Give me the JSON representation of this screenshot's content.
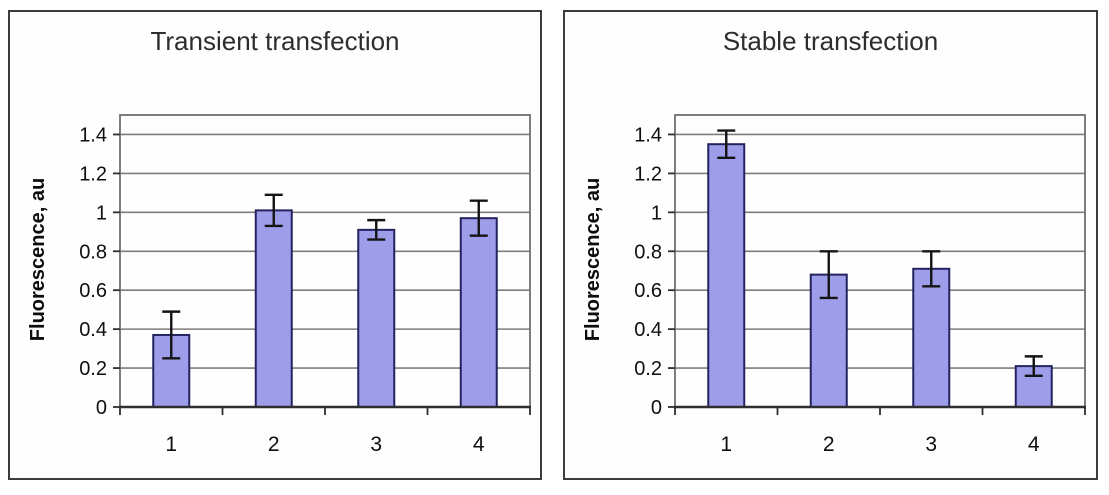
{
  "page": {
    "background": "#ffffff",
    "panel_border_color": "#3c3c3c"
  },
  "chart_data": [
    {
      "type": "bar",
      "title": "Transient transfection",
      "xlabel": "",
      "ylabel": "Fluorescence, au",
      "categories": [
        "1",
        "2",
        "3",
        "4"
      ],
      "values": [
        0.37,
        1.01,
        0.91,
        0.97
      ],
      "errors": [
        0.12,
        0.08,
        0.05,
        0.09
      ],
      "ylim": [
        0,
        1.5
      ],
      "yticks": [
        {
          "value": 0,
          "label": "0"
        },
        {
          "value": 0.2,
          "label": "0.2"
        },
        {
          "value": 0.4,
          "label": "0.4"
        },
        {
          "value": 0.6,
          "label": "0.6"
        },
        {
          "value": 0.8,
          "label": "0.8"
        },
        {
          "value": 1,
          "label": "1"
        },
        {
          "value": 1.2,
          "label": "1.2"
        },
        {
          "value": 1.4,
          "label": "1.4"
        }
      ],
      "grid": true,
      "legend": "none",
      "colors": {
        "bar_fill": "#9d9dea",
        "bar_border": "#23235f",
        "error_bar": "#141414",
        "gridline": "#7d7d7d",
        "plot_border": "#6f6f6f",
        "axis_line": "#2e2e2e",
        "tick_text": "#0f0f0f"
      }
    },
    {
      "type": "bar",
      "title": "Stable transfection",
      "xlabel": "",
      "ylabel": "Fluorescence, au",
      "categories": [
        "1",
        "2",
        "3",
        "4"
      ],
      "values": [
        1.35,
        0.68,
        0.71,
        0.21
      ],
      "errors": [
        0.07,
        0.12,
        0.09,
        0.05
      ],
      "ylim": [
        0,
        1.5
      ],
      "yticks": [
        {
          "value": 0,
          "label": "0"
        },
        {
          "value": 0.2,
          "label": "0.2"
        },
        {
          "value": 0.4,
          "label": "0.4"
        },
        {
          "value": 0.6,
          "label": "0.6"
        },
        {
          "value": 0.8,
          "label": "0.8"
        },
        {
          "value": 1,
          "label": "1"
        },
        {
          "value": 1.2,
          "label": "1.2"
        },
        {
          "value": 1.4,
          "label": "1.4"
        }
      ],
      "grid": true,
      "legend": "none",
      "colors": {
        "bar_fill": "#9d9dea",
        "bar_border": "#23235f",
        "error_bar": "#141414",
        "gridline": "#7d7d7d",
        "plot_border": "#6f6f6f",
        "axis_line": "#2e2e2e",
        "tick_text": "#0f0f0f"
      }
    }
  ]
}
